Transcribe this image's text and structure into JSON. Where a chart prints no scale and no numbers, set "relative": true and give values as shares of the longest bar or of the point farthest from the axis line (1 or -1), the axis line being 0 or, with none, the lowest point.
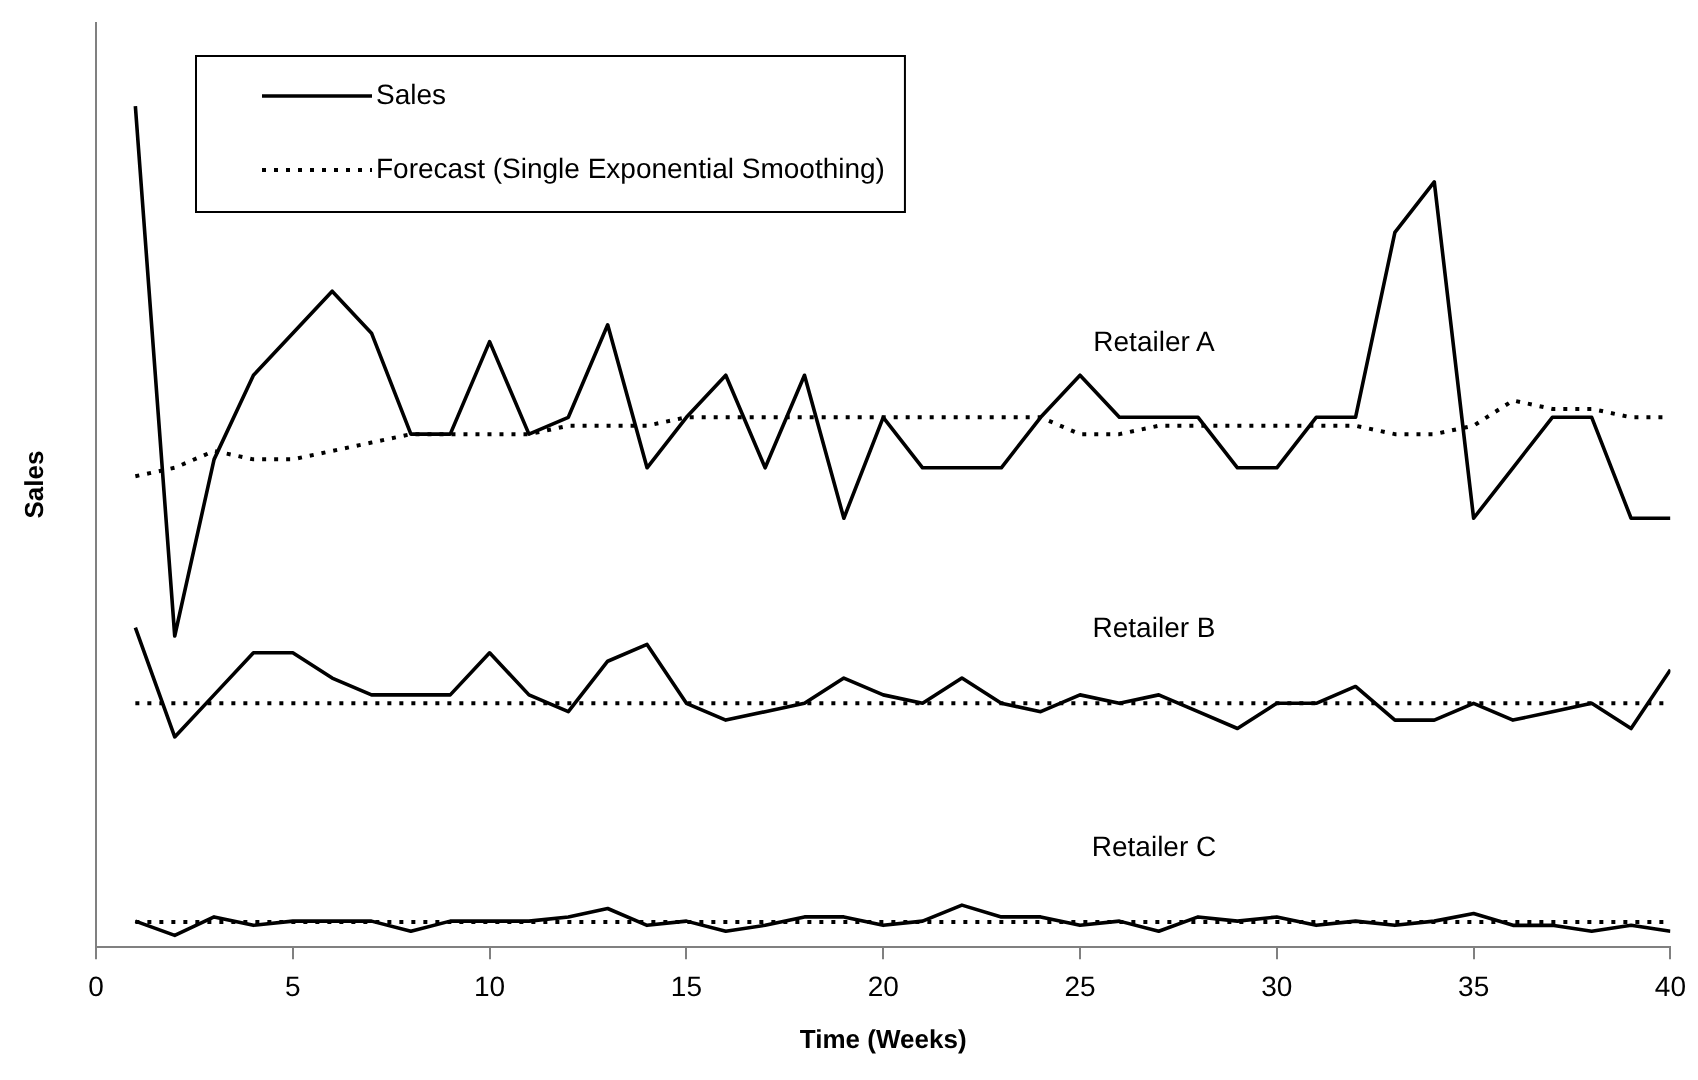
{
  "chart_data": {
    "type": "line",
    "relative": true,
    "xlabel": "Time (Weeks)",
    "ylabel": "Sales",
    "x": [
      1,
      2,
      3,
      4,
      5,
      6,
      7,
      8,
      9,
      10,
      11,
      12,
      13,
      14,
      15,
      16,
      17,
      18,
      19,
      20,
      21,
      22,
      23,
      24,
      25,
      26,
      27,
      28,
      29,
      30,
      31,
      32,
      33,
      34,
      35,
      36,
      37,
      38,
      39,
      40
    ],
    "xlim": [
      0,
      40
    ],
    "xticks": [
      0,
      5,
      10,
      15,
      20,
      25,
      30,
      35,
      40
    ],
    "grid": false,
    "legend": "top left",
    "series": [
      {
        "name": "Sales",
        "color": "#000000",
        "line_style": "solid",
        "values": [
          1.0,
          0.37,
          0.58,
          0.68,
          0.73,
          0.78,
          0.73,
          0.61,
          0.61,
          0.72,
          0.61,
          0.63,
          0.74,
          0.57,
          0.63,
          0.68,
          0.57,
          0.68,
          0.51,
          0.63,
          0.57,
          0.57,
          0.57,
          0.63,
          0.68,
          0.63,
          0.63,
          0.63,
          0.57,
          0.57,
          0.63,
          0.63,
          0.85,
          0.91,
          0.51,
          0.57,
          0.63,
          0.63,
          0.51,
          0.51
        ]
      },
      {
        "name": "Forecast (Single Exponential Smoothing)",
        "color": "#000000",
        "line_style": "dotted",
        "values": [
          0.56,
          0.57,
          0.59,
          0.58,
          0.58,
          0.59,
          0.6,
          0.61,
          0.61,
          0.61,
          0.61,
          0.62,
          0.62,
          0.62,
          0.63,
          0.63,
          0.63,
          0.63,
          0.63,
          0.63,
          0.63,
          0.63,
          0.63,
          0.63,
          0.61,
          0.61,
          0.62,
          0.62,
          0.62,
          0.62,
          0.62,
          0.62,
          0.61,
          0.61,
          0.62,
          0.65,
          0.64,
          0.64,
          0.63,
          0.63
        ]
      },
      {
        "color": "#000000",
        "line_style": "solid",
        "values": [
          0.38,
          0.25,
          0.3,
          0.35,
          0.35,
          0.32,
          0.3,
          0.3,
          0.3,
          0.35,
          0.3,
          0.28,
          0.34,
          0.36,
          0.29,
          0.27,
          0.28,
          0.29,
          0.32,
          0.3,
          0.29,
          0.32,
          0.29,
          0.28,
          0.3,
          0.29,
          0.3,
          0.28,
          0.26,
          0.29,
          0.29,
          0.31,
          0.27,
          0.27,
          0.29,
          0.27,
          0.28,
          0.29,
          0.26,
          0.33
        ]
      },
      {
        "color": "#000000",
        "line_style": "dotted",
        "values": [
          0.29,
          0.29,
          0.29,
          0.29,
          0.29,
          0.29,
          0.29,
          0.29,
          0.29,
          0.29,
          0.29,
          0.29,
          0.29,
          0.29,
          0.29,
          0.29,
          0.29,
          0.29,
          0.29,
          0.29,
          0.29,
          0.29,
          0.29,
          0.29,
          0.29,
          0.29,
          0.29,
          0.29,
          0.29,
          0.29,
          0.29,
          0.29,
          0.29,
          0.29,
          0.29,
          0.29,
          0.29,
          0.29,
          0.29,
          0.29
        ]
      },
      {
        "color": "#000000",
        "line_style": "solid",
        "values": [
          0.031,
          0.014,
          0.036,
          0.026,
          0.031,
          0.031,
          0.031,
          0.019,
          0.031,
          0.031,
          0.031,
          0.036,
          0.046,
          0.026,
          0.031,
          0.019,
          0.026,
          0.036,
          0.036,
          0.026,
          0.031,
          0.05,
          0.036,
          0.036,
          0.026,
          0.031,
          0.019,
          0.036,
          0.031,
          0.036,
          0.026,
          0.031,
          0.026,
          0.031,
          0.04,
          0.026,
          0.026,
          0.019,
          0.026,
          0.019
        ]
      },
      {
        "color": "#000000",
        "line_style": "dotted",
        "values": [
          0.03,
          0.03,
          0.03,
          0.03,
          0.03,
          0.03,
          0.03,
          0.03,
          0.03,
          0.03,
          0.03,
          0.03,
          0.03,
          0.03,
          0.03,
          0.03,
          0.03,
          0.03,
          0.03,
          0.03,
          0.03,
          0.03,
          0.03,
          0.03,
          0.03,
          0.03,
          0.03,
          0.03,
          0.03,
          0.03,
          0.03,
          0.03,
          0.03,
          0.03,
          0.03,
          0.03,
          0.03,
          0.03,
          0.03,
          0.03
        ]
      }
    ],
    "annotations": [
      "Retailer A",
      "Retailer B",
      "Retailer C"
    ]
  }
}
